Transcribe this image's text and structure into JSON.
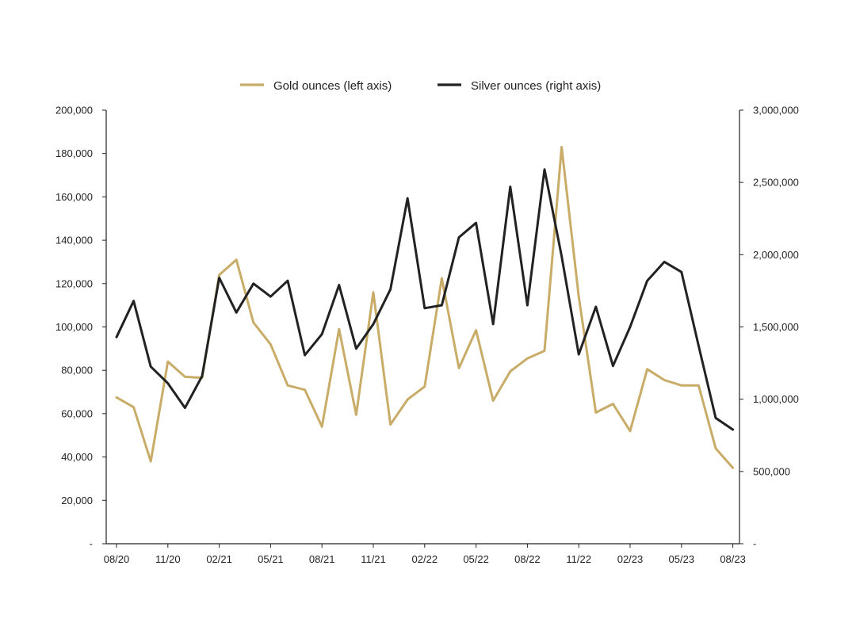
{
  "chart_data": {
    "type": "line",
    "title": "",
    "xlabel": "",
    "colors": {
      "gold": "#c8ac68",
      "silver": "#222222"
    },
    "x": [
      "08/20",
      "09/20",
      "10/20",
      "11/20",
      "12/20",
      "01/21",
      "02/21",
      "03/21",
      "04/21",
      "05/21",
      "06/21",
      "07/21",
      "08/21",
      "09/21",
      "10/21",
      "11/21",
      "12/21",
      "01/22",
      "02/22",
      "03/22",
      "04/22",
      "05/22",
      "06/22",
      "07/22",
      "08/22",
      "09/22",
      "10/22",
      "11/22",
      "12/22",
      "01/23",
      "02/23",
      "03/23",
      "04/23",
      "05/23",
      "06/23",
      "07/23",
      "08/23"
    ],
    "x_tick_labels": [
      "08/20",
      "11/20",
      "02/21",
      "05/21",
      "08/21",
      "11/21",
      "02/22",
      "05/22",
      "08/22",
      "11/22",
      "02/23",
      "05/23",
      "08/23"
    ],
    "y_left": {
      "ylim": [
        0,
        200000
      ],
      "tick_values": [
        0,
        20000,
        40000,
        60000,
        80000,
        100000,
        120000,
        140000,
        160000,
        180000,
        200000
      ],
      "tick_labels": [
        "-",
        "20,000",
        "40,000",
        "60,000",
        "80,000",
        "100,000",
        "120,000",
        "140,000",
        "160,000",
        "180,000",
        "200,000"
      ]
    },
    "y_right": {
      "ylim": [
        0,
        3000000
      ],
      "tick_values": [
        0,
        500000,
        1000000,
        1500000,
        2000000,
        2500000,
        3000000
      ],
      "tick_labels": [
        "-",
        "500,000",
        "1,000,000",
        "1,500,000",
        "2,000,000",
        "2,500,000",
        "3,000,000"
      ]
    },
    "series": [
      {
        "name": "Gold ounces (left axis)",
        "axis": "left",
        "values": [
          67500,
          63000,
          38000,
          84000,
          77000,
          76500,
          124000,
          131000,
          102000,
          92000,
          73000,
          71000,
          54000,
          99000,
          59500,
          116000,
          55000,
          66500,
          72500,
          122500,
          81000,
          98500,
          66000,
          79500,
          85500,
          89000,
          183000,
          114000,
          60500,
          64500,
          52000,
          80500,
          75500,
          73000,
          73000,
          44000,
          35000
        ]
      },
      {
        "name": "Silver ounces (right axis)",
        "axis": "right",
        "values": [
          1430000,
          1680000,
          1225000,
          1110000,
          940000,
          1160000,
          1840000,
          1600000,
          1800000,
          1710000,
          1820000,
          1305000,
          1450000,
          1790000,
          1350000,
          1520000,
          1760000,
          2390000,
          1630000,
          1650000,
          2120000,
          2220000,
          1520000,
          2470000,
          1650000,
          2590000,
          1990000,
          1310000,
          1640000,
          1230000,
          1500000,
          1820000,
          1950000,
          1880000,
          1370000,
          870000,
          790000
        ]
      }
    ],
    "legend_position": "top-center"
  }
}
